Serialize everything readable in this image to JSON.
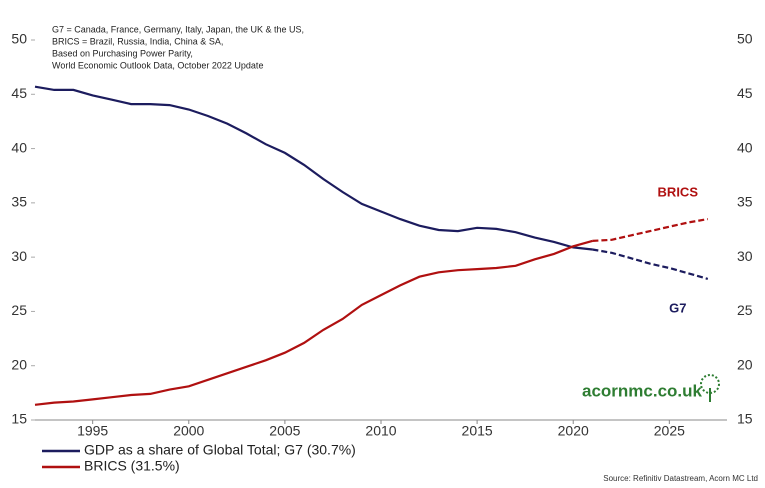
{
  "chart_data": {
    "type": "line",
    "notes": [
      "G7 = Canada, France, Germany, Italy, Japan, the UK & the US,",
      "BRICS = Brazil, Russia, India, China & SA,",
      "Based on Purchasing Power Parity,",
      "World Economic Outlook Data, October 2022 Update"
    ],
    "x": [
      1992,
      1993,
      1994,
      1995,
      1996,
      1997,
      1998,
      1999,
      2000,
      2001,
      2002,
      2003,
      2004,
      2005,
      2006,
      2007,
      2008,
      2009,
      2010,
      2011,
      2012,
      2013,
      2014,
      2015,
      2016,
      2017,
      2018,
      2019,
      2020,
      2021,
      2022,
      2023,
      2024,
      2025,
      2026,
      2027
    ],
    "series": [
      {
        "name": "GDP as a share of Global Total; G7 (30.7%)",
        "label": "G7",
        "color": "#1c1c5e",
        "values": [
          45.7,
          45.4,
          45.4,
          44.9,
          44.5,
          44.1,
          44.1,
          44.0,
          43.6,
          43.0,
          42.3,
          41.4,
          40.4,
          39.6,
          38.5,
          37.2,
          36.0,
          34.9,
          34.2,
          33.5,
          32.9,
          32.5,
          32.4,
          32.7,
          32.6,
          32.3,
          31.8,
          31.4,
          30.9,
          30.7,
          30.4,
          29.9,
          29.4,
          29.0,
          28.5,
          28.0
        ]
      },
      {
        "name": "BRICS (31.5%)",
        "label": "BRICS",
        "color": "#b01010",
        "values": [
          16.4,
          16.6,
          16.7,
          16.9,
          17.1,
          17.3,
          17.4,
          17.8,
          18.1,
          18.7,
          19.3,
          19.9,
          20.5,
          21.2,
          22.1,
          23.3,
          24.3,
          25.6,
          26.5,
          27.4,
          28.2,
          28.6,
          28.8,
          28.9,
          29.0,
          29.2,
          29.8,
          30.3,
          31.0,
          31.5,
          31.6,
          32.0,
          32.4,
          32.8,
          33.2,
          33.5
        ]
      }
    ],
    "forecast_from": 2022,
    "xlim": [
      1992,
      2028
    ],
    "xticks": [
      1995,
      2000,
      2005,
      2010,
      2015,
      2020,
      2025
    ],
    "ylim": [
      15,
      50
    ],
    "yticks": [
      15,
      20,
      25,
      30,
      35,
      40,
      45,
      50
    ],
    "watermark": "acornmc.co.uk",
    "source": "Source: Refinitiv Datastream, Acorn MC Ltd"
  }
}
